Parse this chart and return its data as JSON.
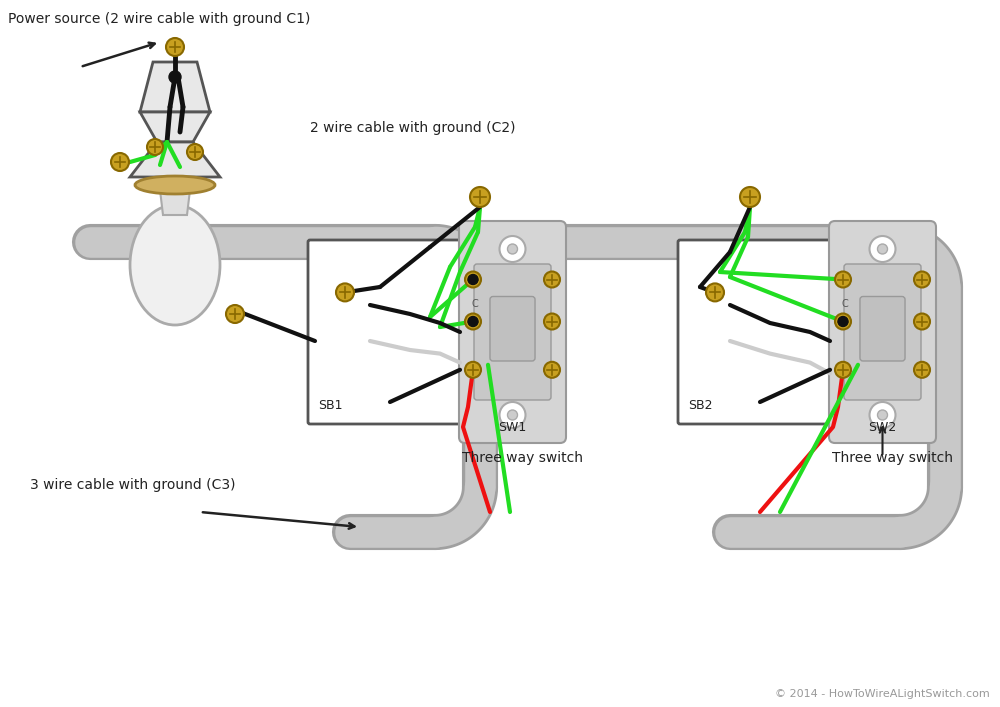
{
  "bg_color": "#ffffff",
  "wire_black": "#111111",
  "wire_green": "#22dd22",
  "wire_red": "#ee1111",
  "wire_white": "#cccccc",
  "conduit_fill": "#c8c8c8",
  "conduit_edge": "#a0a0a0",
  "box_fill": "#e8e8e8",
  "box_edge": "#555555",
  "plate_fill": "#d0d0d0",
  "plate_edge": "#888888",
  "toggle_fill": "#b8b8b8",
  "toggle_edge": "#888888",
  "screw_fill": "#c8a020",
  "screw_edge": "#886800",
  "bulb_fill": "#e8e8e8",
  "bulb_edge": "#888888",
  "text_color": "#222222",
  "copyright_color": "#999999",
  "label1": "Power source (2 wire cable with ground C1)",
  "label2": "2 wire cable with ground (C2)",
  "label3": "3 wire cable with ground (C3)",
  "label_sw1": "SW1",
  "label_sw2": "SW2",
  "label_sb1": "SB1",
  "label_sb2": "SB2",
  "label_three1": "Three way switch",
  "label_three2": "Three way switch",
  "copyright": "© 2014 - HowToWireALightSwitch.com"
}
